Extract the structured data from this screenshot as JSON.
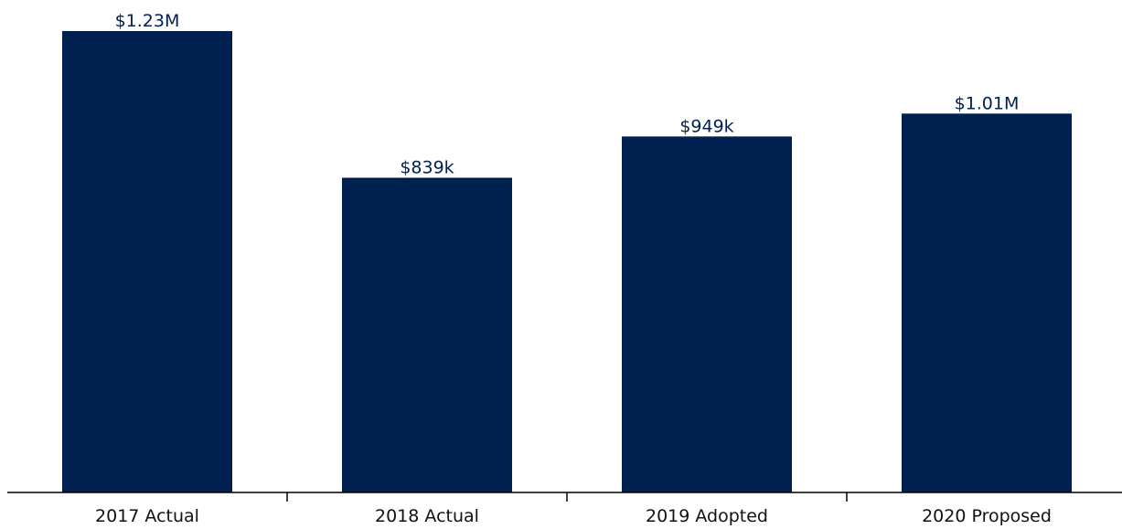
{
  "chart_data": {
    "type": "bar",
    "categories": [
      "2017 Actual",
      "2018 Actual",
      "2019 Adopted",
      "2020 Proposed"
    ],
    "values": [
      1230000,
      839000,
      949000,
      1010000
    ],
    "data_labels": [
      "$1.23M",
      "$839k",
      "$949k",
      "$1.01M"
    ],
    "title": "",
    "xlabel": "",
    "ylabel": "",
    "ylim": [
      0,
      1230000
    ],
    "grid": false,
    "legend": "none",
    "y_axis_visible": false,
    "colors": {
      "bar": "#00214f",
      "label": "#002050",
      "axis": "#000000"
    }
  }
}
